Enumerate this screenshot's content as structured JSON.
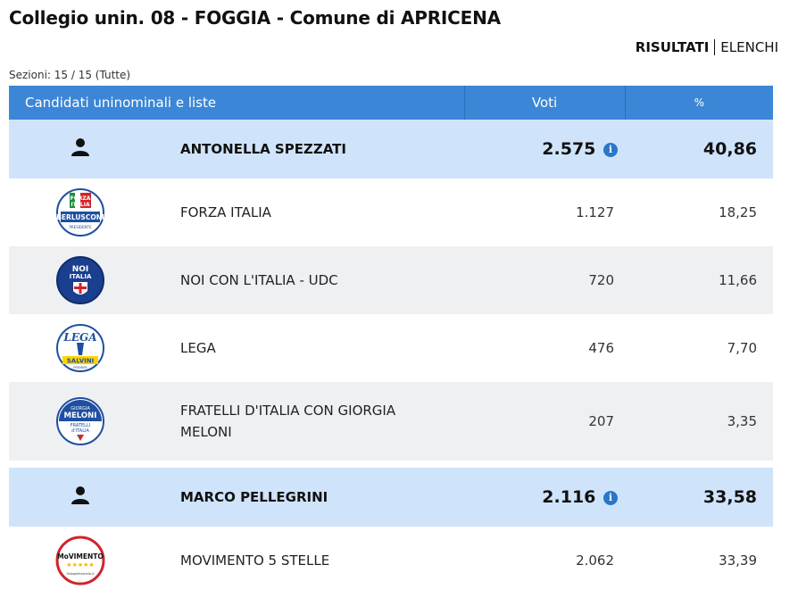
{
  "header": {
    "title": "Collegio unin. 08 - FOGGIA - Comune di APRICENA",
    "tab_results": "RISULTATI",
    "tab_lists": "ELENCHI",
    "sections": "Sezioni: 15 / 15 (Tutte)"
  },
  "table": {
    "col_candidates": "Candidati uninominali e liste",
    "col_votes": "Voti",
    "col_pct": "%"
  },
  "rows": [
    {
      "kind": "candidate",
      "name": "ANTONELLA SPEZZATI",
      "votes": "2.575",
      "pct": "40,86"
    },
    {
      "kind": "list",
      "name": "FORZA ITALIA",
      "votes": "1.127",
      "pct": "18,25",
      "logo": "forza-italia-logo"
    },
    {
      "kind": "list",
      "name": "NOI CON L'ITALIA - UDC",
      "votes": "720",
      "pct": "11,66",
      "logo": "noi-con-italia-logo"
    },
    {
      "kind": "list",
      "name": "LEGA",
      "votes": "476",
      "pct": "7,70",
      "logo": "lega-logo"
    },
    {
      "kind": "list",
      "name": "FRATELLI D'ITALIA CON GIORGIA MELONI",
      "votes": "207",
      "pct": "3,35",
      "logo": "fratelli-italia-logo"
    },
    {
      "kind": "candidate",
      "name": "MARCO PELLEGRINI",
      "votes": "2.116",
      "pct": "33,58"
    },
    {
      "kind": "list",
      "name": "MOVIMENTO 5 STELLE",
      "votes": "2.062",
      "pct": "33,39",
      "logo": "movimento-5-stelle-logo"
    }
  ],
  "logo_text": {
    "forza_top": "FORZA",
    "forza_mid": "ITALIA",
    "forza_name": "BERLUSCONI",
    "forza_sub": "PRESIDENTE",
    "noi_top": "NOI",
    "noi_mid": "con",
    "noi_bottom": "ITALIA",
    "lega_top": "LEGA",
    "lega_bottom": "SALVINI",
    "lega_sub": "PREMIER",
    "fdi_top": "GIORGIA",
    "fdi_mid": "MELONI",
    "fdi_bottom": "FRATELLI",
    "fdi_bottom2": "d'ITALIA",
    "m5s_text": "MoVIMENTO",
    "m5s_stars": "★★★★★",
    "m5s_sub": "ilblogdellestelle.it"
  },
  "colors": {
    "header_bg": "#3b86d6",
    "candidate_bg": "#cfe4fb",
    "alt_row_bg": "#eef0f2",
    "info_icon": "#2a77c9"
  },
  "icons": {
    "candidate": "person-icon",
    "votes_info": "info-icon"
  }
}
